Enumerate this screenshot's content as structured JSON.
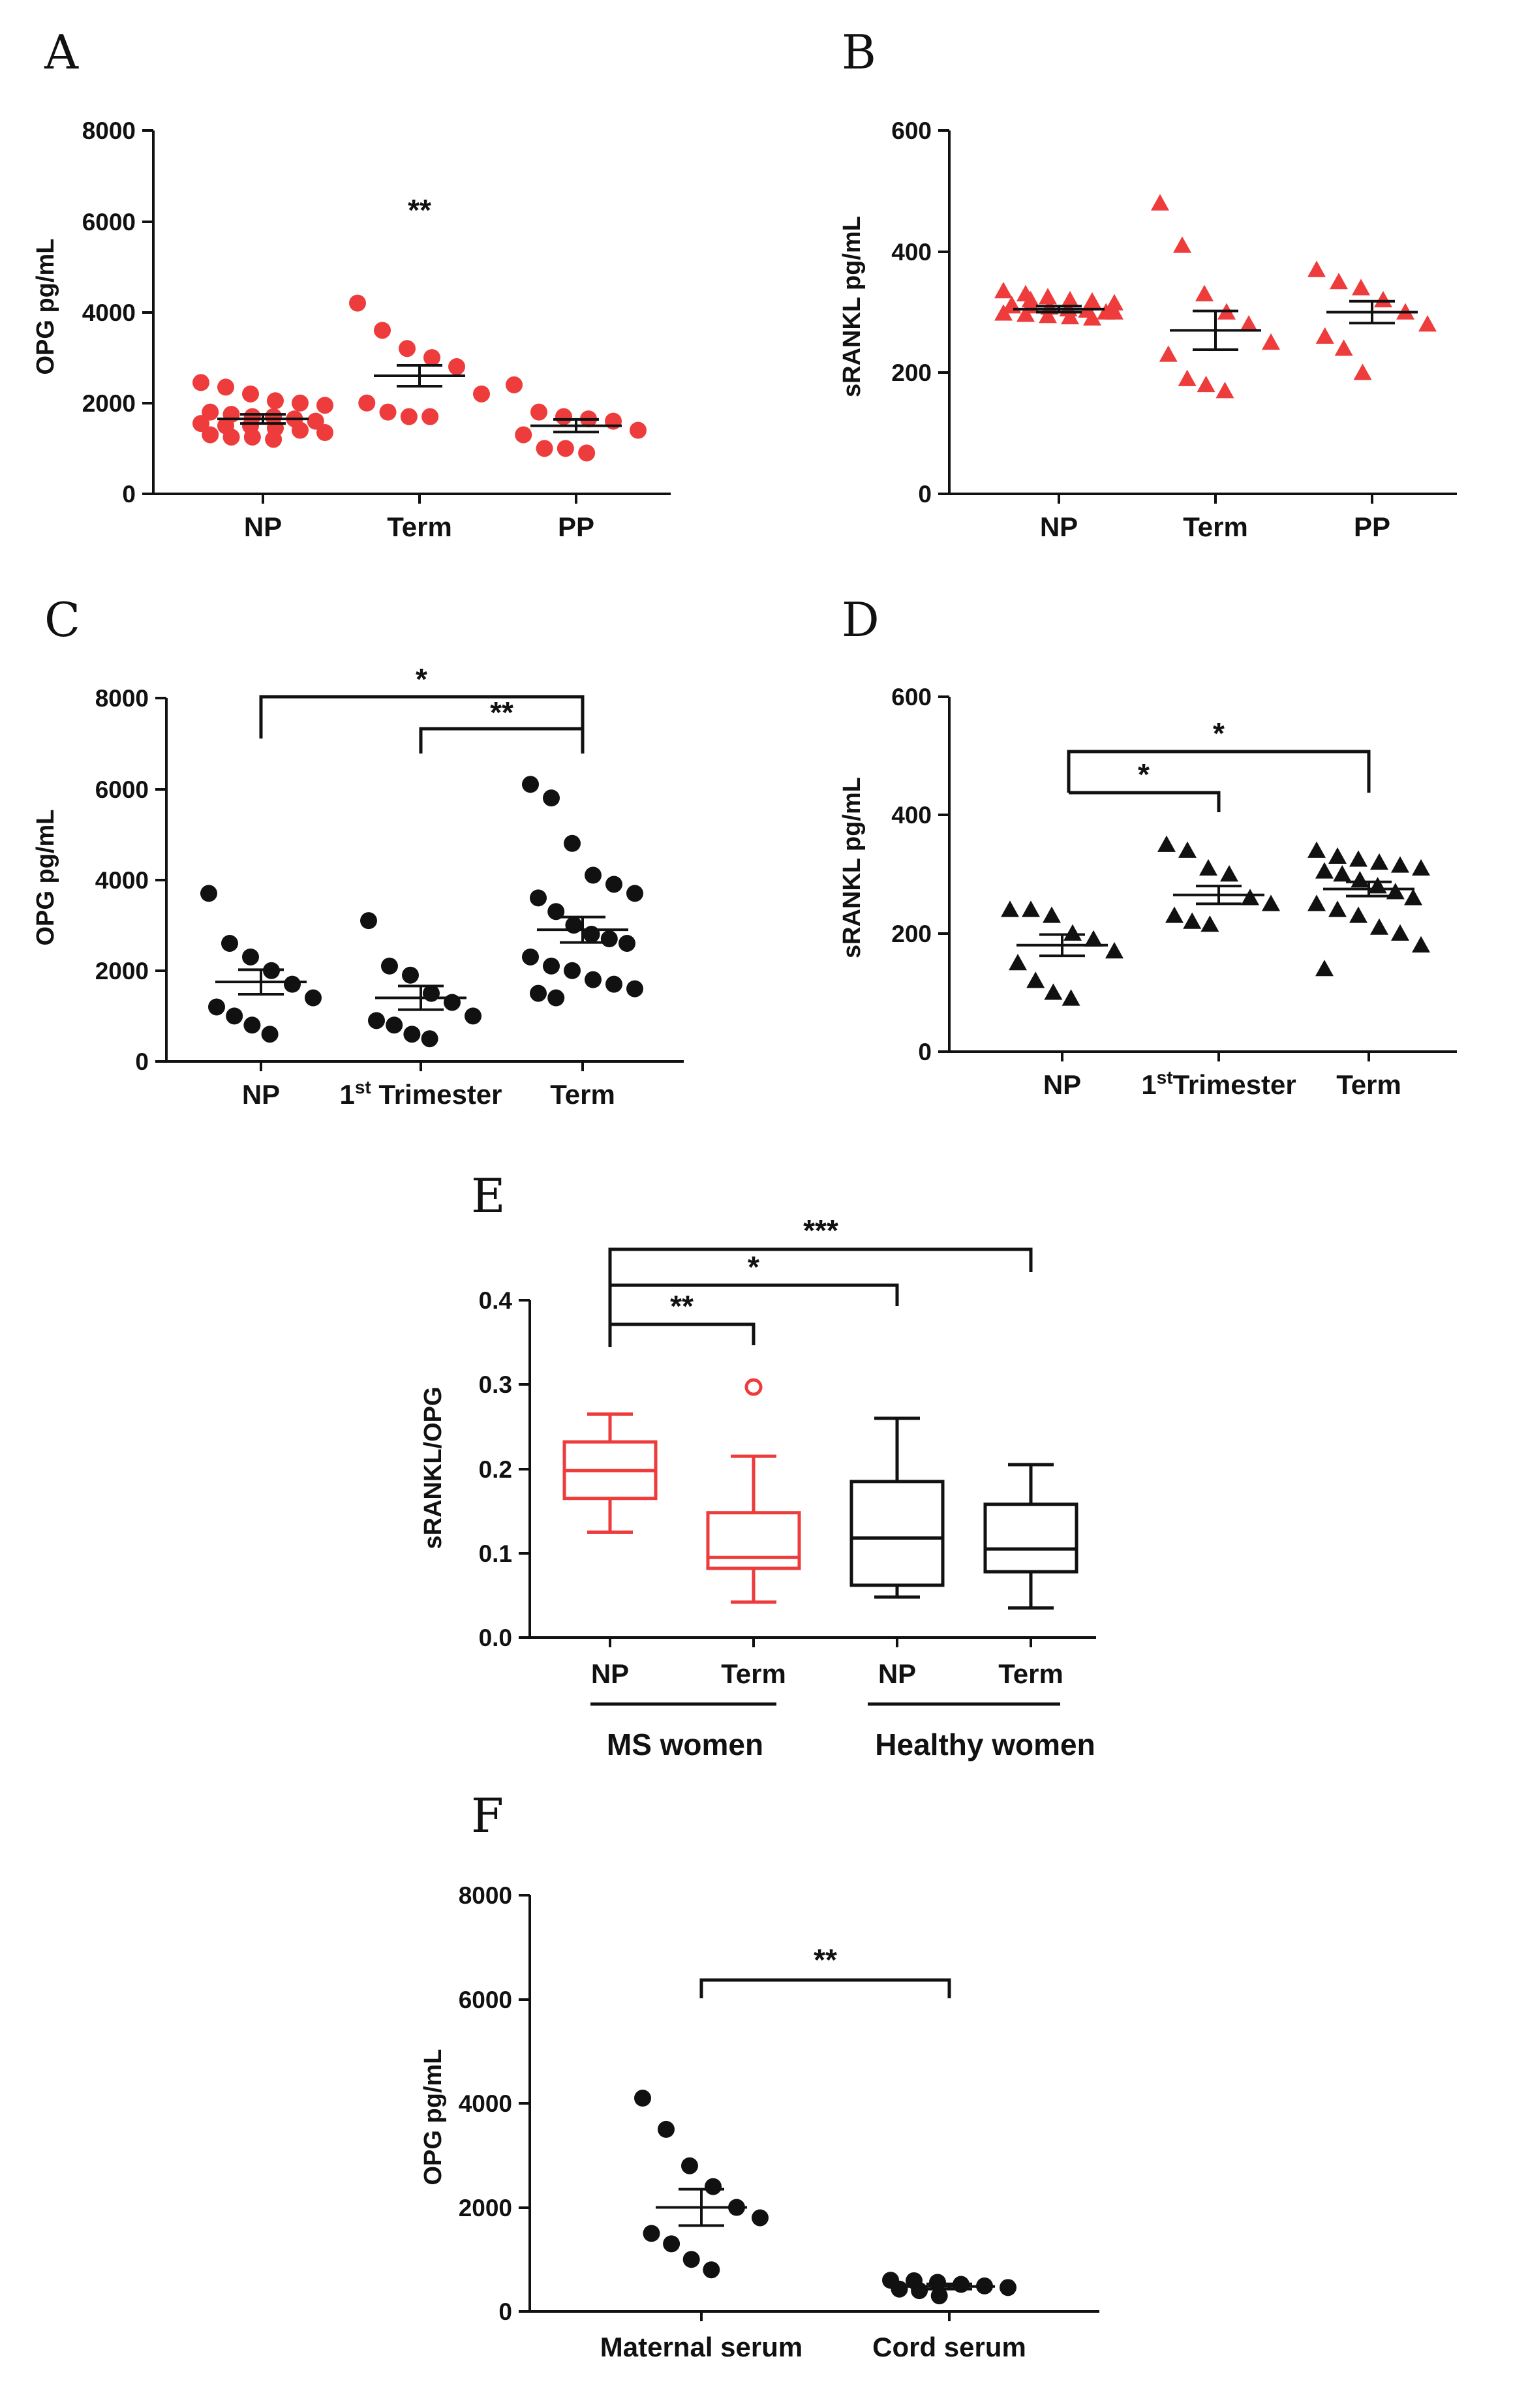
{
  "colors": {
    "red": "#ee3b3b",
    "black": "#111111"
  },
  "chart_data": [
    {
      "panel": "A",
      "type": "scatter",
      "ylabel": "OPG pg/mL",
      "ylim": [
        0,
        8000
      ],
      "yticks": [
        "0",
        "2000",
        "4000",
        "6000",
        "8000"
      ],
      "color": "#ee3b3b",
      "marker": "circle",
      "groups": [
        {
          "label": "NP",
          "mean": 1650,
          "sem": 100,
          "values": [
            2450,
            2350,
            2200,
            2050,
            2000,
            1950,
            1800,
            1750,
            1700,
            1700,
            1650,
            1600,
            1550,
            1500,
            1500,
            1450,
            1400,
            1350,
            1300,
            1250,
            1250,
            1200
          ]
        },
        {
          "label": "Term",
          "mean": 2600,
          "sem": 230,
          "values": [
            4200,
            3600,
            3200,
            3000,
            2800,
            2200,
            2000,
            1800,
            1700,
            1700
          ]
        },
        {
          "label": "PP",
          "mean": 1500,
          "sem": 140,
          "values": [
            2400,
            1800,
            1700,
            1650,
            1600,
            1400,
            1300,
            1000,
            1000,
            900
          ]
        }
      ],
      "annotations": [
        {
          "text": "**",
          "group": "Term",
          "y": 6200
        }
      ]
    },
    {
      "panel": "B",
      "type": "scatter",
      "ylabel": "sRANKL pg/mL",
      "ylim": [
        0,
        600
      ],
      "yticks": [
        "0",
        "200",
        "400",
        "600"
      ],
      "color": "#ee3b3b",
      "marker": "triangle",
      "groups": [
        {
          "label": "NP",
          "mean": 305,
          "sem": 5,
          "values": [
            335,
            330,
            325,
            320,
            318,
            315,
            312,
            310,
            308,
            305,
            303,
            300,
            298,
            296,
            294,
            292,
            290,
            300,
            310,
            320
          ]
        },
        {
          "label": "Term",
          "mean": 270,
          "sem": 32,
          "values": [
            480,
            410,
            330,
            300,
            280,
            250,
            230,
            190,
            180,
            170
          ]
        },
        {
          "label": "PP",
          "mean": 300,
          "sem": 18,
          "values": [
            370,
            350,
            340,
            320,
            300,
            280,
            260,
            240,
            200
          ]
        }
      ],
      "annotations": []
    },
    {
      "panel": "C",
      "type": "scatter",
      "ylabel": "OPG pg/mL",
      "ylim": [
        0,
        8000
      ],
      "yticks": [
        "0",
        "2000",
        "4000",
        "6000",
        "8000"
      ],
      "color": "#111111",
      "marker": "circle",
      "groups": [
        {
          "label": "NP",
          "mean": 1750,
          "sem": 270,
          "values": [
            3700,
            2600,
            2300,
            2000,
            1700,
            1400,
            1200,
            1000,
            800,
            600
          ]
        },
        {
          "label": "1st Trimester",
          "mean": 1400,
          "sem": 260,
          "values": [
            3100,
            2100,
            1900,
            1500,
            1300,
            1000,
            900,
            800,
            600,
            500
          ]
        },
        {
          "label": "Term",
          "mean": 2900,
          "sem": 280,
          "values": [
            6100,
            5800,
            4800,
            4100,
            3900,
            3700,
            3600,
            3300,
            3000,
            2800,
            2700,
            2600,
            2300,
            2100,
            2000,
            1800,
            1700,
            1600,
            1500,
            1400
          ]
        }
      ],
      "annotations": []
    },
    {
      "panel": "D",
      "type": "scatter",
      "ylabel": "sRANKL pg/mL",
      "ylim": [
        0,
        600
      ],
      "yticks": [
        "0",
        "200",
        "400",
        "600"
      ],
      "color": "#111111",
      "marker": "triangle",
      "groups": [
        {
          "label": "NP",
          "mean": 180,
          "sem": 18,
          "values": [
            240,
            240,
            230,
            200,
            190,
            170,
            150,
            120,
            100,
            90
          ]
        },
        {
          "label": "1st Trimester",
          "mean": 265,
          "sem": 15,
          "values": [
            350,
            340,
            310,
            300,
            260,
            250,
            230,
            220,
            215
          ]
        },
        {
          "label": "Term",
          "mean": 275,
          "sem": 12,
          "values": [
            340,
            330,
            325,
            320,
            315,
            310,
            305,
            300,
            290,
            280,
            270,
            260,
            250,
            240,
            230,
            210,
            200,
            180,
            140
          ]
        }
      ],
      "annotations": []
    },
    {
      "panel": "E",
      "type": "box",
      "ylabel": "sRANKL/OPG",
      "ylim": [
        0,
        0.4
      ],
      "yticks": [
        "0.0",
        "0.1",
        "0.2",
        "0.3",
        "0.4"
      ],
      "boxes": [
        {
          "label": "NP",
          "group": "MS women",
          "color": "#ee3b3b",
          "whisker_low": 0.125,
          "q1": 0.165,
          "median": 0.198,
          "q3": 0.232,
          "whisker_high": 0.265,
          "outliers": []
        },
        {
          "label": "Term",
          "group": "MS women",
          "color": "#ee3b3b",
          "whisker_low": 0.042,
          "q1": 0.082,
          "median": 0.095,
          "q3": 0.148,
          "whisker_high": 0.215,
          "outliers": [
            0.297
          ]
        },
        {
          "label": "NP",
          "group": "Healthy women",
          "color": "#111111",
          "whisker_low": 0.048,
          "q1": 0.062,
          "median": 0.118,
          "q3": 0.185,
          "whisker_high": 0.26,
          "outliers": []
        },
        {
          "label": "Term",
          "group": "Healthy women",
          "color": "#111111",
          "whisker_low": 0.035,
          "q1": 0.078,
          "median": 0.105,
          "q3": 0.158,
          "whisker_high": 0.205,
          "outliers": []
        }
      ],
      "group_labels": [
        "MS women",
        "Healthy women"
      ]
    },
    {
      "panel": "F",
      "type": "scatter",
      "ylabel": "OPG pg/mL",
      "ylim": [
        0,
        8000
      ],
      "yticks": [
        "0",
        "2000",
        "4000",
        "6000",
        "8000"
      ],
      "color": "#111111",
      "marker": "circle",
      "groups": [
        {
          "label": "Maternal serum",
          "mean": 2000,
          "sem": 350,
          "values": [
            4100,
            3500,
            2800,
            2400,
            2000,
            1800,
            1500,
            1300,
            1000,
            800
          ]
        },
        {
          "label": "Cord serum",
          "mean": 480,
          "sem": 50,
          "values": [
            600,
            590,
            560,
            520,
            490,
            460,
            430,
            400,
            300
          ]
        }
      ],
      "annotations": []
    }
  ],
  "brackets": {
    "C": [
      {
        "text": "*"
      },
      {
        "text": "**"
      }
    ],
    "D": [
      {
        "text": "*"
      },
      {
        "text": "*"
      }
    ],
    "E": [
      {
        "text": "***"
      },
      {
        "text": "*"
      },
      {
        "text": "**"
      }
    ],
    "F": [
      {
        "text": "**"
      }
    ]
  },
  "labels": {
    "a": {
      "letter": "A",
      "ylabel": "OPG pg/mL",
      "cats": [
        "NP",
        "Term",
        "PP"
      ],
      "ticks": [
        "0",
        "2000",
        "4000",
        "6000",
        "8000"
      ],
      "star": "**"
    },
    "b": {
      "letter": "B",
      "ylabel": "sRANKL pg/mL",
      "cats": [
        "NP",
        "Term",
        "PP"
      ],
      "ticks": [
        "0",
        "200",
        "400",
        "600"
      ]
    },
    "c": {
      "letter": "C",
      "ylabel": "OPG pg/mL",
      "cat1": "NP",
      "cat2_sup": "st",
      "cat2_num": "1",
      "cat2_txt": " Trimester",
      "cat3": "Term",
      "ticks": [
        "0",
        "2000",
        "4000",
        "6000",
        "8000"
      ]
    },
    "d": {
      "letter": "D",
      "ylabel": "sRANKL pg/mL",
      "cat1": "NP",
      "cat2_num": "1",
      "cat2_sup": "st",
      "cat2_txt": "Trimester",
      "cat3": "Term",
      "ticks": [
        "0",
        "200",
        "400",
        "600"
      ]
    },
    "e": {
      "letter": "E",
      "ylabel": "sRANKL/OPG",
      "cats": [
        "NP",
        "Term",
        "NP",
        "Term"
      ],
      "groups": [
        "MS women",
        "Healthy women"
      ],
      "ticks": [
        "0.0",
        "0.1",
        "0.2",
        "0.3",
        "0.4"
      ]
    },
    "f": {
      "letter": "F",
      "ylabel": "OPG pg/mL",
      "cats": [
        "Maternal serum",
        "Cord serum"
      ],
      "ticks": [
        "0",
        "2000",
        "4000",
        "6000",
        "8000"
      ]
    }
  }
}
